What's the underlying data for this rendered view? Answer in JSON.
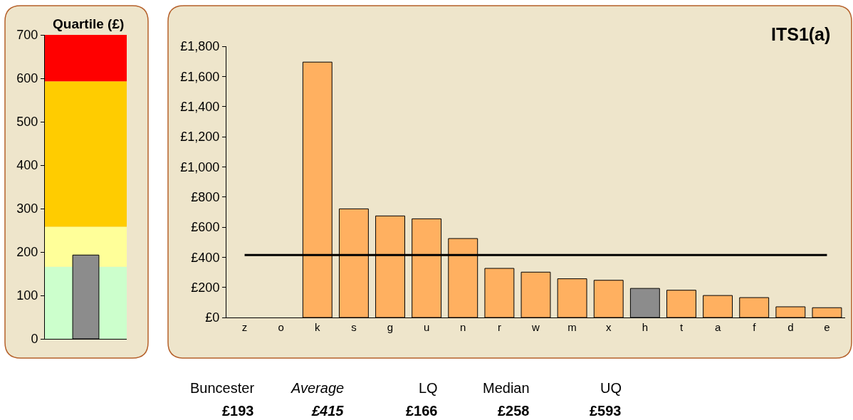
{
  "chart_data": [
    {
      "type": "bar",
      "title": "Quartile (£)",
      "categories": [
        null
      ],
      "values": [
        193
      ],
      "color": "#8c8c8c",
      "ylim": [
        0,
        700
      ],
      "yticks": [
        0,
        100,
        200,
        300,
        400,
        500,
        600,
        700
      ],
      "tick_labels": "y",
      "bands": [
        {
          "axis": "y",
          "from": 0,
          "to": 166,
          "color": "#ccffcc"
        },
        {
          "axis": "y",
          "from": 166,
          "to": 258,
          "color": "#ffff99"
        },
        {
          "axis": "y",
          "from": 258,
          "to": 593,
          "color": "#ffcc00"
        },
        {
          "axis": "y",
          "from": 593,
          "to": 700,
          "color": "#ff0000"
        }
      ]
    },
    {
      "type": "bar",
      "title": "ITS1(a)",
      "categories": [
        "z",
        "o",
        "k",
        "s",
        "g",
        "u",
        "n",
        "r",
        "w",
        "m",
        "x",
        "h",
        "t",
        "a",
        "f",
        "d",
        "e"
      ],
      "values": [
        null,
        null,
        1695,
        721,
        674,
        655,
        524,
        326,
        301,
        257,
        247,
        193,
        181,
        146,
        132,
        71,
        65
      ],
      "colors": [
        "#ffb060",
        "#ffb060",
        "#ffb060",
        "#ffb060",
        "#ffb060",
        "#ffb060",
        "#ffb060",
        "#ffb060",
        "#ffb060",
        "#ffb060",
        "#ffb060",
        "#8c8c8c",
        "#ffb060",
        "#ffb060",
        "#ffb060",
        "#ffb060",
        "#ffb060"
      ],
      "ylim": [
        0,
        1800
      ],
      "yticks": [
        {
          "value": 0,
          "label": "£0"
        },
        {
          "value": 200,
          "label": "£200"
        },
        {
          "value": 400,
          "label": "£400"
        },
        {
          "value": 600,
          "label": "£600"
        },
        {
          "value": 800,
          "label": "£800"
        },
        {
          "value": 1000,
          "label": "£1,000"
        },
        {
          "value": 1200,
          "label": "£1,200"
        },
        {
          "value": 1400,
          "label": "£1,400"
        },
        {
          "value": 1600,
          "label": "£1,600"
        },
        {
          "value": 1800,
          "label": "£1,800"
        }
      ],
      "ref_lines": [
        {
          "axis": "y",
          "value": 415,
          "color": "#000000"
        }
      ],
      "annotations": [
        "Buncester",
        "Average",
        "LQ",
        "Median",
        "UQ",
        "£193",
        "£415",
        "£166",
        "£258",
        "£593"
      ]
    }
  ]
}
